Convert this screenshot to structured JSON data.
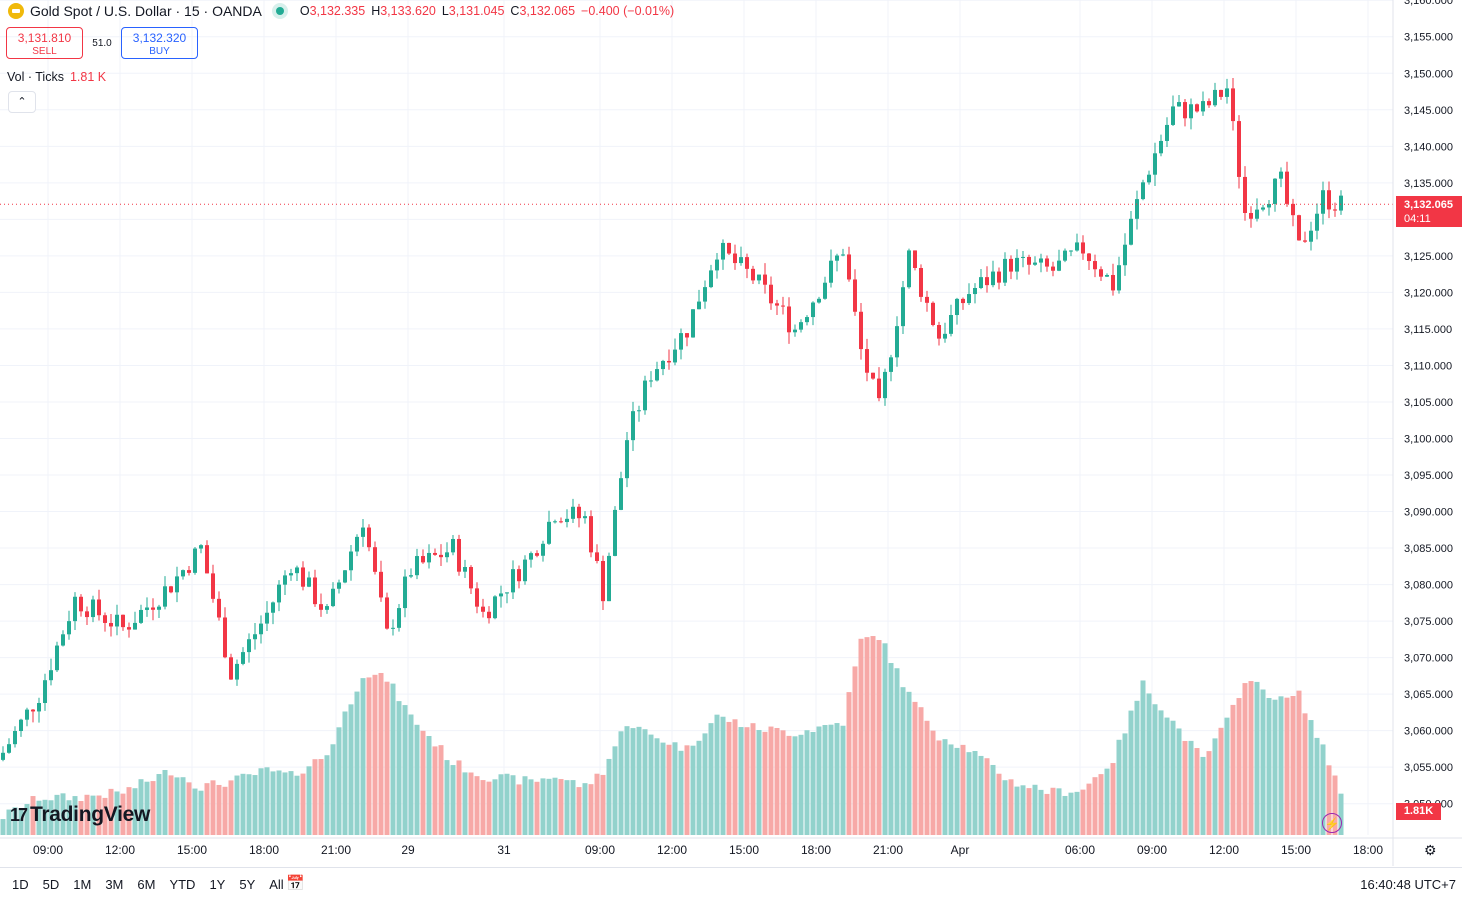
{
  "header": {
    "symbol_title": "Gold Spot / U.S. Dollar · 15 · OANDA",
    "open_label": "O",
    "open_value": "3,132.335",
    "high_label": "H",
    "high_value": "3,133.620",
    "low_label": "L",
    "low_value": "3,131.045",
    "close_label": "C",
    "close_value": "3,132.065",
    "change_value": "−0.400 (−0.01%)"
  },
  "trade": {
    "sell_price": "3,131.810",
    "sell_label": "SELL",
    "spread": "51.0",
    "buy_price": "3,132.320",
    "buy_label": "BUY"
  },
  "volume": {
    "label": "Vol · Ticks",
    "value": "1.81 K",
    "tag": "1.81K"
  },
  "price_tag": {
    "price": "3,132.065",
    "countdown": "04:11"
  },
  "logo_text": "TradingView",
  "time_ranges": [
    "1D",
    "5D",
    "1M",
    "3M",
    "6M",
    "YTD",
    "1Y",
    "5Y",
    "All"
  ],
  "clock": "16:40:48 UTC+7",
  "icons": [
    "gold-icon",
    "collapse-icon",
    "calendar-icon",
    "settings-icon",
    "bolt-icon"
  ],
  "colors": {
    "up": "#22ab94",
    "down": "#f23645",
    "vol_up": "#92d2cc",
    "vol_down": "#f7a9a7"
  },
  "chart_data": {
    "type": "candlestick",
    "title": "Gold Spot / U.S. Dollar · 15 · OANDA",
    "y_ticks": [
      "3,160.000",
      "3,155.000",
      "3,150.000",
      "3,145.000",
      "3,140.000",
      "3,135.000",
      "3,130.000",
      "3,125.000",
      "3,120.000",
      "3,115.000",
      "3,110.000",
      "3,105.000",
      "3,100.000",
      "3,095.000",
      "3,090.000",
      "3,085.000",
      "3,080.000",
      "3,075.000",
      "3,070.000",
      "3,065.000",
      "3,060.000",
      "3,055.000",
      "3,050.000"
    ],
    "ylim": [
      3046,
      3161
    ],
    "x_ticks": [
      "09:00",
      "12:00",
      "15:00",
      "18:00",
      "21:00",
      "29",
      "31",
      "09:00",
      "12:00",
      "15:00",
      "18:00",
      "21:00",
      "Apr",
      "06:00",
      "09:00",
      "12:00",
      "15:00",
      "18:00"
    ],
    "last_price": 3132.065,
    "anchors": [
      [
        0,
        3057,
        5
      ],
      [
        6,
        3065,
        12
      ],
      [
        12,
        3078,
        12
      ],
      [
        20,
        3074,
        14
      ],
      [
        28,
        3080,
        22
      ],
      [
        33,
        3085,
        16
      ],
      [
        38,
        3068,
        18
      ],
      [
        44,
        3076,
        22
      ],
      [
        48,
        3083,
        20
      ],
      [
        54,
        3076,
        28
      ],
      [
        60,
        3089,
        58
      ],
      [
        64,
        3073,
        56
      ],
      [
        68,
        3082,
        42
      ],
      [
        75,
        3085,
        25
      ],
      [
        80,
        3076,
        20
      ],
      [
        88,
        3084,
        18
      ],
      [
        92,
        3090,
        20
      ],
      [
        97,
        3089,
        16
      ],
      [
        100,
        3079,
        22
      ],
      [
        104,
        3100,
        40
      ],
      [
        108,
        3109,
        35
      ],
      [
        114,
        3115,
        30
      ],
      [
        119,
        3126,
        42
      ],
      [
        125,
        3122,
        38
      ],
      [
        132,
        3115,
        36
      ],
      [
        140,
        3126,
        40
      ],
      [
        143,
        3112,
        70
      ],
      [
        146,
        3104,
        72
      ],
      [
        151,
        3125,
        50
      ],
      [
        156,
        3114,
        35
      ],
      [
        161,
        3120,
        30
      ],
      [
        168,
        3124,
        18
      ],
      [
        175,
        3123,
        14
      ],
      [
        180,
        3126,
        15
      ],
      [
        185,
        3121,
        26
      ],
      [
        190,
        3135,
        54
      ],
      [
        195,
        3145,
        40
      ],
      [
        200,
        3145,
        26
      ],
      [
        204,
        3148,
        40
      ],
      [
        207,
        3131,
        56
      ],
      [
        213,
        3135,
        48
      ],
      [
        216,
        3126,
        50
      ],
      [
        220,
        3133,
        30
      ],
      [
        223,
        3132,
        15
      ]
    ]
  }
}
